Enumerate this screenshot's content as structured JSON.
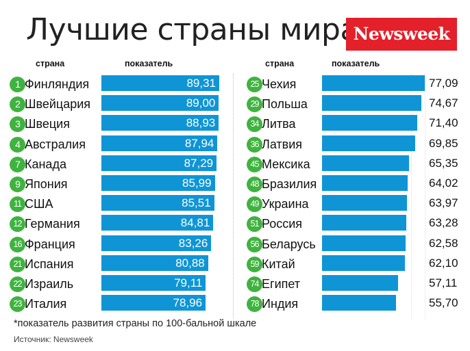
{
  "title": "Лучшие страны мира",
  "brand": "Newsweek",
  "headers": {
    "left_country": "страна",
    "left_value": "показатель",
    "right_country": "страна",
    "right_value": "показатель"
  },
  "footnote": "*показатель развития страны по 100-бальной шкале",
  "source": "Источник: Newsweek",
  "colors": {
    "bar": "#0f95d6",
    "badge": "#3fb33f",
    "brand": "#e4202b"
  },
  "chart_data": [
    {
      "type": "bar",
      "orientation": "horizontal",
      "ranks": [
        "1",
        "2",
        "3",
        "4",
        "7",
        "9",
        "11",
        "12",
        "16",
        "21",
        "22",
        "23"
      ],
      "categories": [
        "Финляндия",
        "Швейцария",
        "Швеция",
        "Австралия",
        "Канада",
        "Япония",
        "США",
        "Германия",
        "Франция",
        "Испания",
        "Израиль",
        "Италия"
      ],
      "labels": [
        "89,31",
        "89,00",
        "88,93",
        "87,94",
        "87,29",
        "85,99",
        "85,51",
        "84,81",
        "83,26",
        "80,88",
        "79,11",
        "78,96"
      ],
      "values": [
        89.31,
        89.0,
        88.93,
        87.94,
        87.29,
        85.99,
        85.51,
        84.81,
        83.26,
        80.88,
        79.11,
        78.96
      ]
    },
    {
      "type": "bar",
      "orientation": "horizontal",
      "ranks": [
        "25",
        "29",
        "34",
        "36",
        "45",
        "48",
        "49",
        "51",
        "56",
        "59",
        "74",
        "78"
      ],
      "categories": [
        "Чехия",
        "Польша",
        "Литва",
        "Латвия",
        "Мексика",
        "Бразилия",
        "Украина",
        "Россия",
        "Беларусь",
        "Китай",
        "Египет",
        "Индия"
      ],
      "labels": [
        "77,09",
        "74,67",
        "71,40",
        "69,85",
        "65,35",
        "64,02",
        "63,97",
        "63,28",
        "62,58",
        "62,10",
        "57,11",
        "55,70"
      ],
      "values": [
        77.09,
        74.67,
        71.4,
        69.85,
        65.35,
        64.02,
        63.97,
        63.28,
        62.58,
        62.1,
        57.11,
        55.7
      ]
    }
  ]
}
